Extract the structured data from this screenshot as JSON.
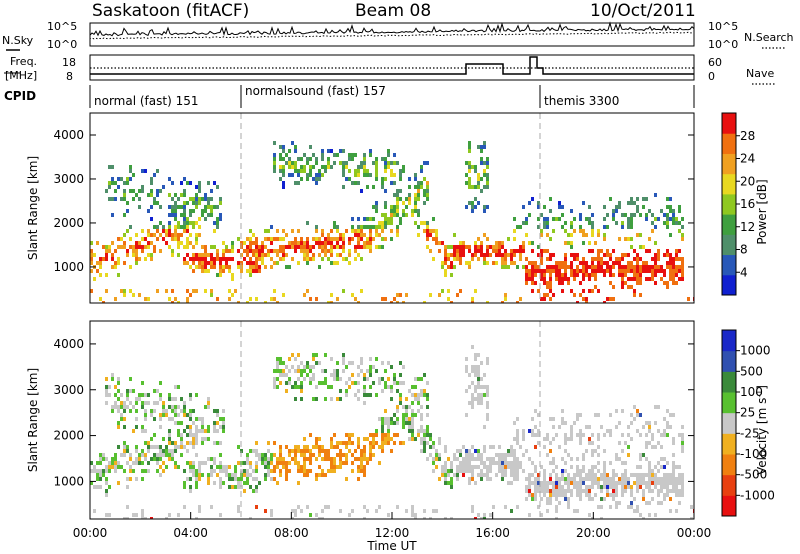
{
  "header": {
    "station": "Saskatoon (fitACF)",
    "beam": "Beam 08",
    "date": "10/Oct/2011"
  },
  "noise_panel": {
    "left_label": "N.Sky",
    "left_ticks": [
      "10^5",
      "10^0"
    ],
    "right_ticks": [
      "10^5",
      "10^0"
    ],
    "right_label": "N.Search"
  },
  "freq_panel": {
    "left_label_1": "Freq.",
    "left_label_2": "[MHz]",
    "left_ticks": [
      "18",
      "8"
    ],
    "right_ticks": [
      "60",
      "0"
    ],
    "right_label": "Nave"
  },
  "cpid": {
    "label": "CPID",
    "modes": [
      "normal (fast) 151",
      "normalsound (fast) 157",
      "themis 3300"
    ]
  },
  "colors": {
    "power": [
      "#1020d0",
      "#2858b8",
      "#4f8f6a",
      "#3f9f3f",
      "#8fc820",
      "#e8d820",
      "#f0a020",
      "#f07010",
      "#e81010"
    ],
    "velocity": [
      "#1a28c8",
      "#3050b0",
      "#3a8a3a",
      "#58c030",
      "#c8c8c8",
      "#f0b020",
      "#f08010",
      "#e84010",
      "#e81010"
    ]
  },
  "chart_data": [
    {
      "type": "heatmap",
      "title": "Power",
      "xlabel": "",
      "ylabel": "Slant Range [km]",
      "xlim": [
        "00:00",
        "00:00"
      ],
      "ylim": [
        180,
        4500
      ],
      "y_ticks": [
        "4000",
        "3000",
        "2000",
        "1000"
      ],
      "colorbar_label": "Power [dB]",
      "colorbar_ticks": [
        "28",
        "24",
        "20",
        "16",
        "12",
        "8",
        "4"
      ]
    },
    {
      "type": "heatmap",
      "title": "Velocity",
      "xlabel": "Time UT",
      "ylabel": "Slant Range [km]",
      "x_ticks": [
        "00:00",
        "04:00",
        "08:00",
        "12:00",
        "16:00",
        "20:00",
        "00:00"
      ],
      "xlim": [
        "00:00",
        "00:00"
      ],
      "ylim": [
        180,
        4500
      ],
      "y_ticks": [
        "4000",
        "3000",
        "2000",
        "1000"
      ],
      "colorbar_label": "Velocity [m s^-1]",
      "colorbar_ticks": [
        "1000",
        "500",
        "100",
        "25",
        "-25",
        "-100",
        "-500",
        "-1000"
      ]
    }
  ]
}
